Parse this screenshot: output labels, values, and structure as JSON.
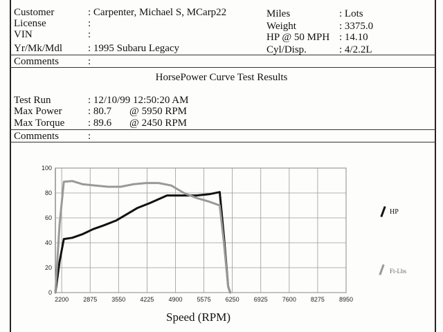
{
  "header": {
    "customer_label": "Customer",
    "customer_value": ": Carpenter, Michael S, MCarp22",
    "license_label": "License",
    "license_value": ":",
    "vin_label": "VIN",
    "vin_value": ":",
    "yrmkmdl_label": "Yr/Mk/Mdl",
    "yrmkmdl_value": ": 1995 Subaru Legacy",
    "miles_label": "Miles",
    "miles_value": ": Lots",
    "weight_label": "Weight",
    "weight_value": ": 3375.0",
    "hp50_label": "HP @ 50 MPH",
    "hp50_value": ": 14.10",
    "cyl_label": "Cyl/Disp.",
    "cyl_value": ": 4/2.2L",
    "comments_label": "Comments",
    "comments_value": ":"
  },
  "results": {
    "title": "HorsePower Curve Test Results",
    "testrun_label": "Test Run",
    "testrun_value": ": 12/10/99 12:50:20 AM",
    "maxpower_label": "Max Power",
    "maxpower_value": ": 80.7",
    "maxpower_rpm": "@ 5950  RPM",
    "maxtorque_label": "Max Torque",
    "maxtorque_value": ": 89.6",
    "maxtorque_rpm": "@ 2450  RPM",
    "comments_label": "Comments",
    "comments_value": ":"
  },
  "chart_data": {
    "type": "line",
    "xlabel": "Speed (RPM)",
    "ylabel": "",
    "ylim": [
      0,
      100
    ],
    "xlim": [
      2050,
      8950
    ],
    "x_ticks": [
      "2200",
      "2875",
      "3550",
      "4225",
      "4900",
      "5575",
      "6250",
      "6925",
      "7600",
      "8275",
      "8950"
    ],
    "y_ticks": [
      "0",
      "20",
      "40",
      "60",
      "80",
      "100"
    ],
    "grid": true,
    "legend_position": "right",
    "series": [
      {
        "name": "HP",
        "color": "#111111",
        "x": [
          2050,
          2150,
          2250,
          2450,
          2700,
          2950,
          3200,
          3500,
          3750,
          4000,
          4300,
          4500,
          4700,
          4900,
          5100,
          5400,
          5700,
          5950,
          6050,
          6150,
          6200
        ],
        "y": [
          0,
          25,
          43,
          44,
          47,
          51,
          54,
          58,
          63,
          68,
          72,
          75,
          78,
          78,
          78,
          78,
          79,
          80.7,
          45,
          5,
          0
        ]
      },
      {
        "name": "Ft-Lbs",
        "color": "#999999",
        "x": [
          2050,
          2150,
          2250,
          2450,
          2700,
          3000,
          3300,
          3600,
          3900,
          4200,
          4500,
          4800,
          5100,
          5400,
          5700,
          5950,
          6050,
          6150,
          6200
        ],
        "y": [
          0,
          55,
          89,
          89.6,
          87,
          86,
          85,
          85,
          87,
          88,
          88,
          86,
          80,
          76,
          73,
          70,
          40,
          5,
          0
        ]
      }
    ]
  }
}
